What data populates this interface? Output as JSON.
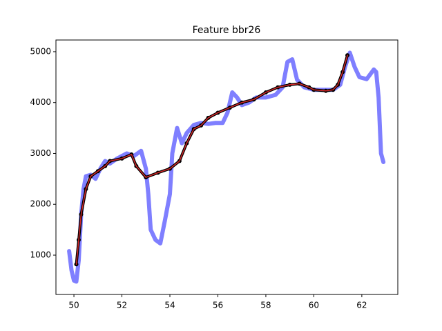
{
  "chart_data": {
    "type": "line",
    "title": "Feature bbr26",
    "xlim": [
      49.25,
      63.5
    ],
    "ylim": [
      227,
      5230
    ],
    "xticks": [
      50,
      52,
      54,
      56,
      58,
      60,
      62
    ],
    "yticks": [
      1000,
      2000,
      3000,
      4000,
      5000
    ],
    "series": [
      {
        "color": "#7f7fff",
        "width": 6,
        "marker": false,
        "x": [
          49.8,
          49.9,
          50.0,
          50.1,
          50.2,
          50.3,
          50.4,
          50.5,
          50.7,
          50.9,
          51.1,
          51.3,
          51.5,
          51.8,
          52.2,
          52.5,
          52.8,
          53.0,
          53.1,
          53.2,
          53.4,
          53.6,
          53.8,
          54.0,
          54.1,
          54.3,
          54.5,
          54.7,
          55.0,
          55.3,
          55.6,
          55.9,
          56.2,
          56.4,
          56.6,
          56.8,
          57.0,
          57.3,
          57.6,
          58.0,
          58.4,
          58.7,
          58.9,
          59.1,
          59.3,
          59.6,
          60.0,
          60.4,
          60.8,
          61.1,
          61.3,
          61.5,
          61.7,
          61.9,
          62.2,
          62.5,
          62.6,
          62.7,
          62.8,
          62.9
        ],
        "values": [
          1080,
          700,
          500,
          480,
          900,
          1800,
          2300,
          2550,
          2580,
          2500,
          2700,
          2850,
          2800,
          2900,
          3000,
          2950,
          3050,
          2700,
          2200,
          1500,
          1300,
          1230,
          1700,
          2200,
          3000,
          3500,
          3200,
          3400,
          3560,
          3600,
          3580,
          3600,
          3600,
          3800,
          4200,
          4100,
          3950,
          4000,
          4100,
          4100,
          4150,
          4300,
          4800,
          4850,
          4450,
          4300,
          4250,
          4250,
          4250,
          4350,
          4700,
          4980,
          4700,
          4500,
          4460,
          4650,
          4600,
          4100,
          3000,
          2830
        ]
      },
      {
        "color": "#000000",
        "width": 4,
        "marker": true,
        "x": [
          50.1,
          50.2,
          50.3,
          50.5,
          50.7,
          51.0,
          51.3,
          51.5,
          52.0,
          52.4,
          52.6,
          53.0,
          53.5,
          54.0,
          54.4,
          54.7,
          55.0,
          55.3,
          55.6,
          56.0,
          56.5,
          57.0,
          57.5,
          58.0,
          58.5,
          59.0,
          59.4,
          59.8,
          60.0,
          60.5,
          60.8,
          61.0,
          61.2,
          61.4
        ],
        "values": [
          820,
          1300,
          1800,
          2300,
          2550,
          2650,
          2750,
          2850,
          2900,
          2980,
          2750,
          2530,
          2620,
          2700,
          2850,
          3200,
          3480,
          3550,
          3700,
          3800,
          3900,
          4000,
          4060,
          4200,
          4300,
          4350,
          4370,
          4300,
          4250,
          4230,
          4250,
          4350,
          4600,
          4930
        ]
      },
      {
        "color": "#d62728",
        "width": 1.5,
        "marker": false,
        "x": [
          50.1,
          50.2,
          50.3,
          50.5,
          50.7,
          51.0,
          51.3,
          51.5,
          52.0,
          52.4,
          52.6,
          53.0,
          53.5,
          54.0,
          54.4,
          54.7,
          55.0,
          55.3,
          55.6,
          56.0,
          56.5,
          57.0,
          57.5,
          58.0,
          58.5,
          59.0,
          59.4,
          59.8,
          60.0,
          60.5,
          60.8,
          61.0,
          61.2,
          61.4
        ],
        "values": [
          820,
          1300,
          1800,
          2300,
          2550,
          2650,
          2750,
          2850,
          2900,
          2980,
          2750,
          2530,
          2620,
          2700,
          2850,
          3200,
          3480,
          3550,
          3700,
          3800,
          3900,
          4000,
          4060,
          4200,
          4300,
          4350,
          4370,
          4300,
          4250,
          4230,
          4250,
          4350,
          4600,
          4930
        ]
      }
    ]
  }
}
